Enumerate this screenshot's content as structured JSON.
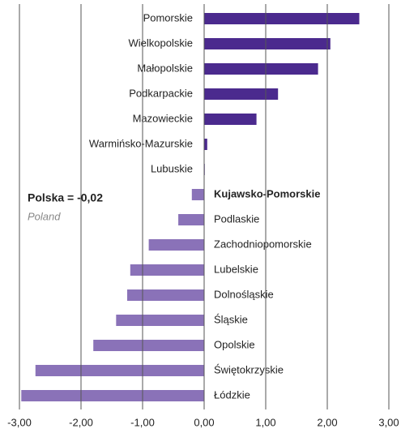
{
  "chart_data": {
    "type": "barh",
    "categories": [
      "Pomorskie",
      "Wielkopolskie",
      "Małopolskie",
      "Podkarpackie",
      "Mazowieckie",
      "Warmińsko-Mazurskie",
      "Lubuskie",
      "Kujawsko-Pomorskie",
      "Podlaskie",
      "Zachodniopomorskie",
      "Lubelskie",
      "Dolnośląskie",
      "Śląskie",
      "Opolskie",
      "Świętokrzyskie",
      "Łódzkie"
    ],
    "values": [
      2.52,
      2.05,
      1.85,
      1.2,
      0.85,
      0.05,
      0.01,
      -0.2,
      -0.42,
      -0.9,
      -1.2,
      -1.25,
      -1.43,
      -1.8,
      -2.74,
      -2.97
    ],
    "positive_color": "#4b2a8e",
    "negative_color": "#8a72b8",
    "highlight": 7,
    "xlim": [
      -3,
      3
    ],
    "xticks": [
      {
        "value": -3,
        "label": "-3,00"
      },
      {
        "value": -2,
        "label": "-2,00"
      },
      {
        "value": -1,
        "label": "-1,00"
      },
      {
        "value": 0,
        "label": "0,00"
      },
      {
        "value": 1,
        "label": "1,00"
      },
      {
        "value": 2,
        "label": "2,00"
      },
      {
        "value": 3,
        "label": "3,00"
      }
    ],
    "grid": true,
    "annotations": [
      "Polska = -0,02",
      "Poland"
    ]
  }
}
